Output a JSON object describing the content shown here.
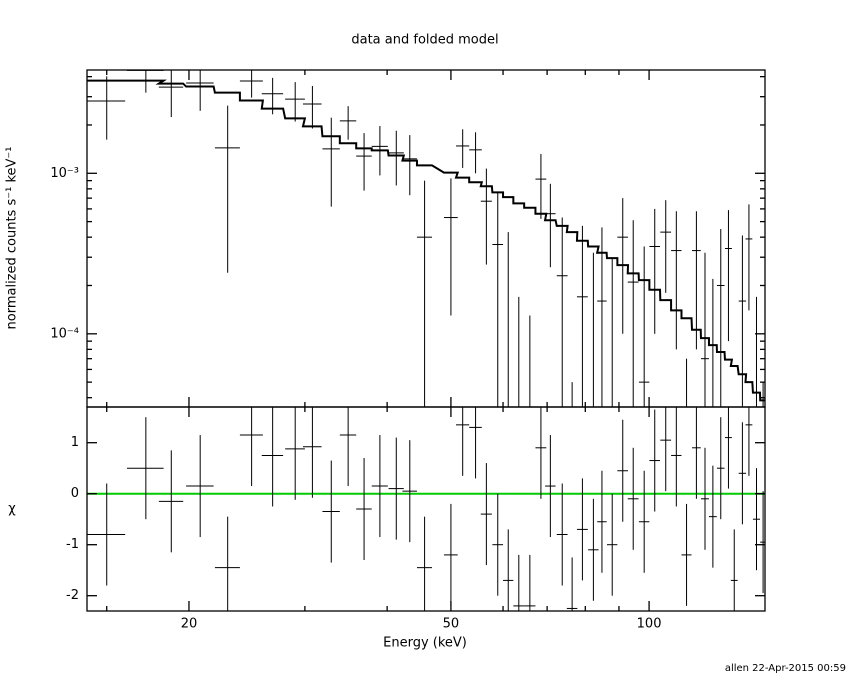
{
  "chart_data": [
    {
      "type": "errorbar-step",
      "title": "data and folded model",
      "ylabel": "normalized counts s⁻¹ keV⁻¹",
      "xlog": true,
      "ylog": true,
      "xlim": [
        14,
        150
      ],
      "ylim": [
        3.5e-05,
        0.0044
      ],
      "xticks": [
        20,
        50,
        100
      ],
      "xminor": [
        15,
        30,
        40,
        60,
        70,
        80,
        90
      ],
      "yticks": [
        {
          "value": 0.001,
          "label": "10⁻³"
        },
        {
          "value": 0.0001,
          "label": "10⁻⁴"
        }
      ],
      "yminor": [
        4e-05,
        5e-05,
        6e-05,
        7e-05,
        8e-05,
        9e-05,
        0.0002,
        0.0003,
        0.0004,
        0.0005,
        0.0006,
        0.0007,
        0.0008,
        0.0009,
        0.002,
        0.003,
        0.004
      ],
      "color": "#000000",
      "x": [
        15,
        17.2,
        18.8,
        20.8,
        22.9,
        24.9,
        26.8,
        29.0,
        30.8,
        32.9,
        34.9,
        36.9,
        39.0,
        41.3,
        43.3,
        45.6,
        50,
        52.1,
        54.5,
        56.6,
        58.9,
        61.1,
        63.4,
        65.9,
        68.5,
        70.8,
        73.8,
        76.4,
        79.2,
        82.3,
        84.8,
        87.9,
        91.2,
        94.6,
        98.3,
        102,
        106,
        110,
        114,
        118,
        121.6,
        125,
        128.5,
        132,
        134.7,
        138.6,
        141.8,
        145.6,
        149
      ],
      "xerr": [
        1.0,
        1.1,
        0.8,
        1.0,
        1.0,
        1.0,
        1.0,
        1.0,
        1.0,
        1.0,
        1.0,
        1.0,
        1.1,
        1.1,
        1.1,
        1.2,
        1.2,
        1.2,
        1.2,
        1.1,
        1.1,
        1.1,
        1.2,
        1.3,
        1.3,
        1.3,
        1.4,
        1.4,
        1.5,
        1.5,
        1.4,
        1.6,
        1.7,
        1.8,
        1.8,
        1.9,
        2.0,
        2.0,
        2.0,
        1.8,
        1.7,
        1.7,
        1.7,
        1.6,
        1.6,
        1.8,
        1.7,
        1.8,
        1.5
      ],
      "values": [
        0.00282,
        0.00438,
        0.00344,
        0.00365,
        0.00144,
        0.00376,
        0.00313,
        0.0029,
        0.0027,
        0.00142,
        0.00212,
        0.00128,
        0.00147,
        0.00134,
        0.00123,
        0.0004,
        0.00053,
        0.00148,
        0.0014,
        0.00067,
        0.00036,
        3e-05,
        -0.00023,
        -0.00027,
        0.00092,
        0.00056,
        0.00023,
        -0.00025,
        0.00017,
        2e-05,
        0.00016,
        -4e-06,
        0.0004,
        0.00021,
        5e-05,
        0.00035,
        0.00043,
        0.00033,
        -0.00018,
        0.00033,
        7e-05,
        -3e-05,
        0.0002,
        0.00034,
        -0.00036,
        0.00016,
        0.00039,
        -8e-05,
        -0.0002
      ],
      "errors": [
        0.0012,
        0.0012,
        0.0012,
        0.0012,
        0.0012,
        0.0008,
        0.0008,
        0.0008,
        0.0008,
        0.0008,
        0.0005,
        0.0005,
        0.0005,
        0.0005,
        0.0005,
        0.0005,
        0.0004,
        0.0004,
        0.0004,
        0.0004,
        0.0004,
        0.0004,
        0.0004,
        0.0004,
        0.0004,
        0.0003,
        0.0003,
        0.0003,
        0.0003,
        0.0003,
        0.0003,
        0.0003,
        0.0003,
        0.0003,
        0.0003,
        0.00025,
        0.00025,
        0.00025,
        0.00025,
        0.00025,
        0.00025,
        0.00025,
        0.00025,
        0.00025,
        0.00025,
        0.00025,
        0.00025,
        0.00025,
        0.00025
      ],
      "model": [
        0.00378,
        0.00378,
        0.00362,
        0.00347,
        0.00318,
        0.00284,
        0.00253,
        0.0022,
        0.00196,
        0.0017,
        0.00154,
        0.00143,
        0.00139,
        0.00129,
        0.0012,
        0.00112,
        0.00101,
        0.00094,
        0.00088,
        0.00083,
        0.00076,
        0.00071,
        0.00065,
        0.00061,
        0.00056,
        0.00051,
        0.00047,
        0.00043,
        0.00038,
        0.00035,
        0.00032,
        0.000296,
        0.000268,
        0.000238,
        0.000216,
        0.000188,
        0.000162,
        0.00014,
        0.000125,
        0.000106,
        9.4e-05,
        8.5e-05,
        7.7e-05,
        6.9e-05,
        6.3e-05,
        5.6e-05,
        5e-05,
        4.3e-05,
        3.85e-05
      ]
    },
    {
      "type": "residual",
      "xlabel": "Energy (keV)",
      "ylabel": "χ",
      "xlog": true,
      "xlim": [
        14,
        150
      ],
      "ylim": [
        -2.3,
        1.7
      ],
      "xticks": [
        20,
        50,
        100
      ],
      "xminor": [
        15,
        30,
        40,
        60,
        70,
        80,
        90
      ],
      "yticks": [
        1,
        0,
        -1,
        -2
      ],
      "color": "#000000",
      "refline": 0,
      "refcolor": "#00cc00",
      "x": [
        15,
        17.2,
        18.8,
        20.8,
        22.9,
        24.9,
        26.8,
        29.0,
        30.8,
        32.9,
        34.9,
        36.9,
        39.0,
        41.3,
        43.3,
        45.6,
        50,
        52.1,
        54.5,
        56.6,
        58.9,
        61.1,
        63.4,
        65.9,
        68.5,
        70.8,
        73.8,
        76.4,
        79.2,
        82.3,
        84.8,
        87.9,
        91.2,
        94.6,
        98.3,
        102,
        106,
        110,
        114,
        118,
        121.6,
        125,
        128.5,
        132,
        134.7,
        138.6,
        141.8,
        145.6,
        149
      ],
      "xerr": [
        1.0,
        1.1,
        0.8,
        1.0,
        1.0,
        1.0,
        1.0,
        1.0,
        1.0,
        1.0,
        1.0,
        1.0,
        1.1,
        1.1,
        1.1,
        1.2,
        1.2,
        1.2,
        1.2,
        1.1,
        1.1,
        1.1,
        1.2,
        1.3,
        1.3,
        1.3,
        1.4,
        1.4,
        1.5,
        1.5,
        1.4,
        1.6,
        1.7,
        1.8,
        1.8,
        1.9,
        2.0,
        2.0,
        2.0,
        1.8,
        1.7,
        1.7,
        1.7,
        1.6,
        1.6,
        1.8,
        1.7,
        1.8,
        1.5
      ],
      "values": [
        -0.8,
        0.5,
        -0.15,
        0.15,
        -1.45,
        1.15,
        0.75,
        0.88,
        0.92,
        -0.35,
        1.15,
        -0.3,
        0.15,
        0.1,
        0.05,
        -1.45,
        -1.2,
        1.35,
        1.3,
        -0.4,
        -1.0,
        -1.7,
        -2.2,
        -2.2,
        0.9,
        0.15,
        -0.8,
        -2.25,
        -0.7,
        -1.1,
        -0.55,
        -1.0,
        0.45,
        -0.1,
        -0.55,
        0.65,
        1.05,
        0.75,
        -1.2,
        0.9,
        -0.1,
        -0.45,
        0.5,
        1.1,
        -1.7,
        0.4,
        1.35,
        -0.5,
        -0.95
      ],
      "error": 1
    }
  ],
  "footer": "allen 22-Apr-2015 00:59"
}
